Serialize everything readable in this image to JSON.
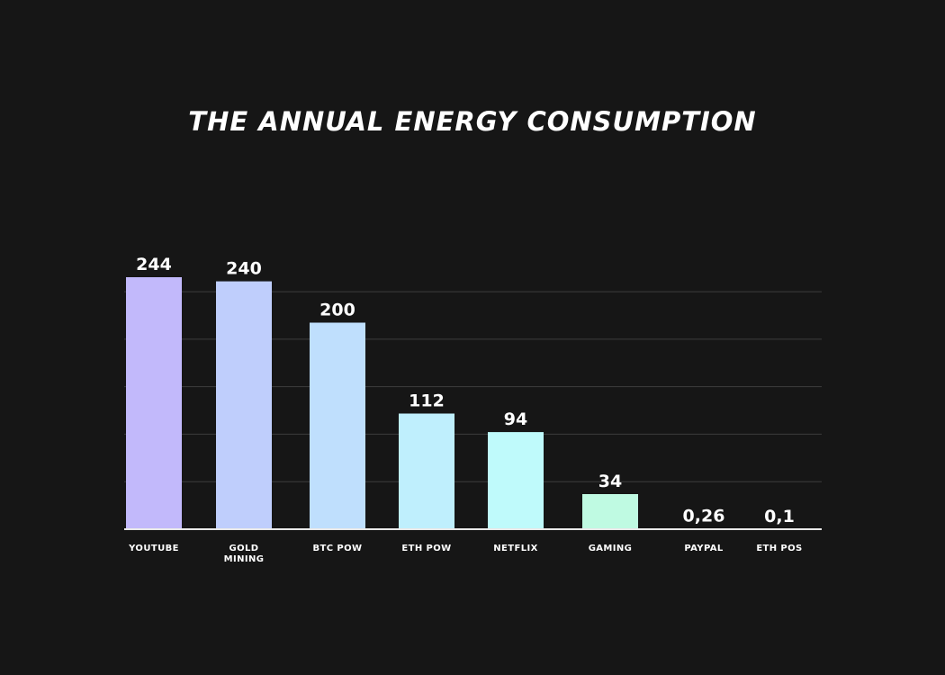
{
  "chart_data": {
    "type": "bar",
    "title": "THE ANNUAL ENERGY CONSUMPTION",
    "xlabel": "",
    "ylabel": "",
    "ylim": [
      0,
      250
    ],
    "grid": true,
    "categories": [
      "YOUTUBE",
      "GOLD\nMINING",
      "BTC POW",
      "ETH POW",
      "NETFLIX",
      "GAMING",
      "PAYPAL",
      "ETH POS"
    ],
    "values": [
      244,
      240,
      200,
      112,
      94,
      34,
      0.26,
      0.1
    ],
    "value_labels": [
      "244",
      "240",
      "200",
      "112",
      "94",
      "34",
      "0,26",
      "0,1"
    ],
    "colors": [
      "#c2b9fb",
      "#bfcefc",
      "#bfdffd",
      "#bfeffd",
      "#bffafb",
      "#bffae2",
      "#bffae2",
      "#bffae2"
    ],
    "background": "#161616",
    "text_color": "#ffffff"
  }
}
